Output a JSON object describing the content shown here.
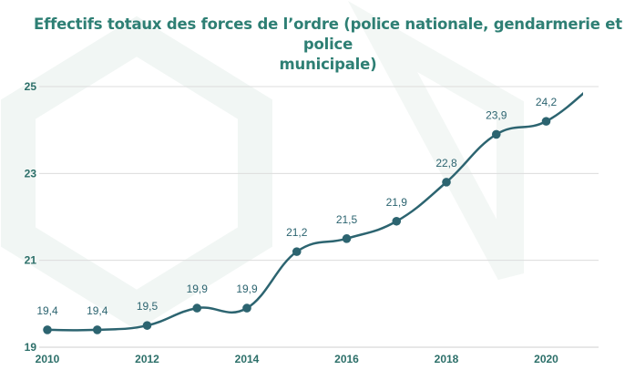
{
  "chart_data": {
    "type": "line",
    "title_lines": [
      "Effectifs totaux des forces de l’ordre (police nationale, gendarmerie et police",
      "municipale)"
    ],
    "x": [
      2010,
      2011,
      2012,
      2013,
      2014,
      2015,
      2016,
      2017,
      2018,
      2019,
      2020,
      2021
    ],
    "series": [
      {
        "values": [
          19.4,
          19.4,
          19.5,
          19.9,
          19.9,
          21.2,
          21.5,
          21.9,
          22.8,
          23.9,
          24.2,
          25.1
        ],
        "labels": [
          "19,4",
          "19,4",
          "19,5",
          "19,9",
          "19,9",
          "21,2",
          "21,5",
          "21,9",
          "22,8",
          "23,9",
          "24,2",
          null
        ]
      }
    ],
    "x_ticks": [
      "2010",
      "2012",
      "2014",
      "2016",
      "2018",
      "2020"
    ],
    "y_ticks": [
      "19",
      "21",
      "23",
      "25"
    ],
    "ylim": [
      19,
      25
    ],
    "grid": true,
    "colors": {
      "line": "#2c6470",
      "title": "#2e7f74",
      "ticks": "#2c6f69",
      "grid": "#dcdcdc",
      "watermark": "#f1f6f4"
    }
  }
}
